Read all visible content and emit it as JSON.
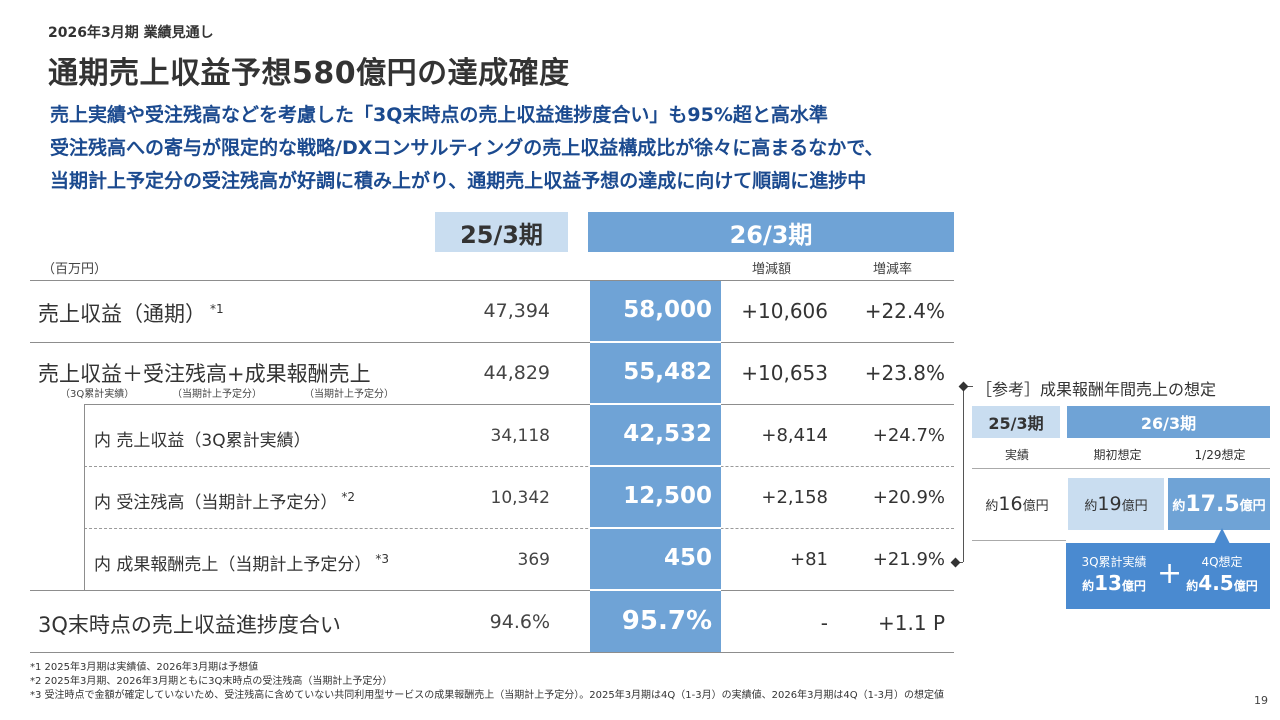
{
  "header": {
    "kicker": "2026年3月期 業績見通し",
    "title": "通期売上収益予想580億円の達成確度",
    "lines": [
      "売上実績や受注残高などを考慮した「3Q末時点の売上収益進捗度合い」も95%超と高水準",
      "受注残高への寄与が限定的な戦略/DXコンサルティングの売上収益構成比が徐々に高まるなかで、",
      "当期計上予定分の受注残高が好調に積み上がり、通期売上収益予想の達成に向けて順調に進捗中"
    ]
  },
  "table": {
    "prev_period": "25/3期",
    "cur_period": "26/3期",
    "unit": "（百万円）",
    "col_change": "増減額",
    "col_rate": "増減率",
    "rows": [
      {
        "label": "売上収益（通期）",
        "note": "*1",
        "prev": "47,394",
        "cur": "58,000",
        "change": "+10,606",
        "rate": "+22.4%"
      },
      {
        "label": "売上収益＋受注残高+成果報酬売上",
        "sub1": "（3Q累計実績）",
        "sub2": "（当期計上予定分）",
        "sub3": "（当期計上予定分）",
        "prev": "44,829",
        "cur": "55,482",
        "change": "+10,653",
        "rate": "+23.8%"
      },
      {
        "label": "内 売上収益（3Q累計実績）",
        "prev": "34,118",
        "cur": "42,532",
        "change": "+8,414",
        "rate": "+24.7%"
      },
      {
        "label": "内 受注残高（当期計上予定分）",
        "note": "*2",
        "prev": "10,342",
        "cur": "12,500",
        "change": "+2,158",
        "rate": "+20.9%"
      },
      {
        "label": "内 成果報酬売上（当期計上予定分）",
        "note": "*3",
        "prev": "369",
        "cur": "450",
        "change": "+81",
        "rate": "+21.9%"
      },
      {
        "label": "3Q末時点の売上収益進捗度合い",
        "prev": "94.6%",
        "cur": "95.7%",
        "change": "-",
        "rate": "+1.1 P"
      }
    ]
  },
  "reference": {
    "title": "［参考］成果報酬年間売上の想定",
    "prev_period": "25/3期",
    "cur_period": "26/3期",
    "sub_actual": "実績",
    "sub_initial": "期初想定",
    "sub_latest": "1/29想定",
    "approx": "約",
    "unit": "億円",
    "actual_value": "16",
    "initial_value": "19",
    "latest_value": "17.5",
    "breakdown": {
      "left_label": "3Q累計実績",
      "left_value": "13",
      "right_label": "4Q想定",
      "right_value": "4.5",
      "plus": "+"
    }
  },
  "footnotes": [
    "*1 2025年3月期は実績値、2026年3月期は予想値",
    "*2 2025年3月期、2026年3月期ともに3Q末時点の受注残高（当期計上予定分）",
    "*3 受注時点で金額が確定していないため、受注残高に含めていない共同利用型サービスの成果報酬売上（当期計上予定分）。2025年3月期は4Q（1-3月）の実績値、2026年3月期は4Q（1-3月）の想定値"
  ],
  "page_number": "19",
  "colors": {
    "title_blue": "#1b4a8f",
    "light_blue": "#c9ddf0",
    "mid_blue": "#6fa3d6",
    "callout_blue": "#4a8ad0"
  }
}
